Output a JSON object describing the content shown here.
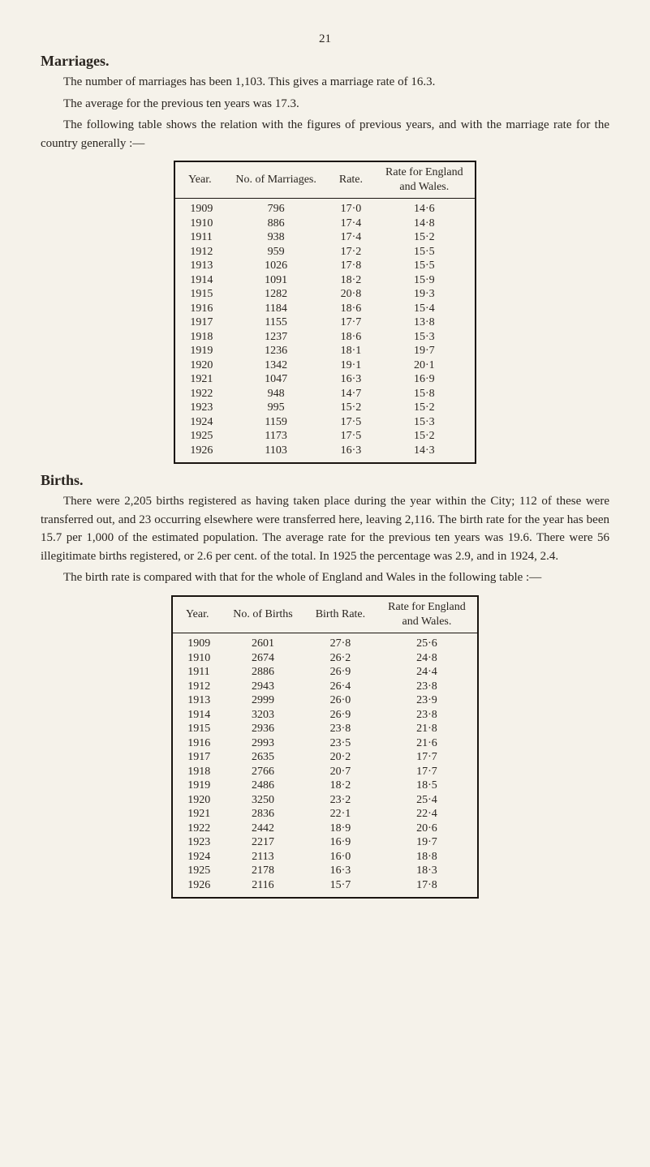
{
  "page_number": "21",
  "section1": {
    "heading": "Marriages.",
    "para1": "The number of marriages has been 1,103. This gives a marriage rate of 16.3.",
    "para2": "The average for the previous ten years was 17.3.",
    "para3": "The following table shows the relation with the figures of previous years, and with the marriage rate for the country generally :—"
  },
  "table1": {
    "headers": [
      "Year.",
      "No. of Marriages.",
      "Rate.",
      "Rate for England and Wales."
    ],
    "rows": [
      [
        "1909",
        "796",
        "17·0",
        "14·6"
      ],
      [
        "1910",
        "886",
        "17·4",
        "14·8"
      ],
      [
        "1911",
        "938",
        "17·4",
        "15·2"
      ],
      [
        "1912",
        "959",
        "17·2",
        "15·5"
      ],
      [
        "1913",
        "1026",
        "17·8",
        "15·5"
      ],
      [
        "1914",
        "1091",
        "18·2",
        "15·9"
      ],
      [
        "1915",
        "1282",
        "20·8",
        "19·3"
      ],
      [
        "1916",
        "1184",
        "18·6",
        "15·4"
      ],
      [
        "1917",
        "1155",
        "17·7",
        "13·8"
      ],
      [
        "1918",
        "1237",
        "18·6",
        "15·3"
      ],
      [
        "1919",
        "1236",
        "18·1",
        "19·7"
      ],
      [
        "1920",
        "1342",
        "19·1",
        "20·1"
      ],
      [
        "1921",
        "1047",
        "16·3",
        "16·9"
      ],
      [
        "1922",
        "948",
        "14·7",
        "15·8"
      ],
      [
        "1923",
        "995",
        "15·2",
        "15·2"
      ],
      [
        "1924",
        "1159",
        "17·5",
        "15·3"
      ],
      [
        "1925",
        "1173",
        "17·5",
        "15·2"
      ],
      [
        "1926",
        "1103",
        "16·3",
        "14·3"
      ]
    ]
  },
  "section2": {
    "heading": "Births.",
    "para1": "There were 2,205 births registered as having taken place during the year within the City; 112 of these were transferred out, and 23 occurring elsewhere were transferred here, leaving 2,116. The birth rate for the year has been 15.7 per 1,000 of the estimated population. The average rate for the previous ten years was 19.6. There were 56 illegitimate births registered, or 2.6 per cent. of the total. In 1925 the percentage was 2.9, and in 1924, 2.4.",
    "para2": "The birth rate is compared with that for the whole of England and Wales in the following table :—"
  },
  "table2": {
    "headers": [
      "Year.",
      "No. of Births",
      "Birth Rate.",
      "Rate for England and Wales."
    ],
    "rows": [
      [
        "1909",
        "2601",
        "27·8",
        "25·6"
      ],
      [
        "1910",
        "2674",
        "26·2",
        "24·8"
      ],
      [
        "1911",
        "2886",
        "26·9",
        "24·4"
      ],
      [
        "1912",
        "2943",
        "26·4",
        "23·8"
      ],
      [
        "1913",
        "2999",
        "26·0",
        "23·9"
      ],
      [
        "1914",
        "3203",
        "26·9",
        "23·8"
      ],
      [
        "1915",
        "2936",
        "23·8",
        "21·8"
      ],
      [
        "1916",
        "2993",
        "23·5",
        "21·6"
      ],
      [
        "1917",
        "2635",
        "20·2",
        "17·7"
      ],
      [
        "1918",
        "2766",
        "20·7",
        "17·7"
      ],
      [
        "1919",
        "2486",
        "18·2",
        "18·5"
      ],
      [
        "1920",
        "3250",
        "23·2",
        "25·4"
      ],
      [
        "1921",
        "2836",
        "22·1",
        "22·4"
      ],
      [
        "1922",
        "2442",
        "18·9",
        "20·6"
      ],
      [
        "1923",
        "2217",
        "16·9",
        "19·7"
      ],
      [
        "1924",
        "2113",
        "16·0",
        "18·8"
      ],
      [
        "1925",
        "2178",
        "16·3",
        "18·3"
      ],
      [
        "1926",
        "2116",
        "15·7",
        "17·8"
      ]
    ]
  }
}
